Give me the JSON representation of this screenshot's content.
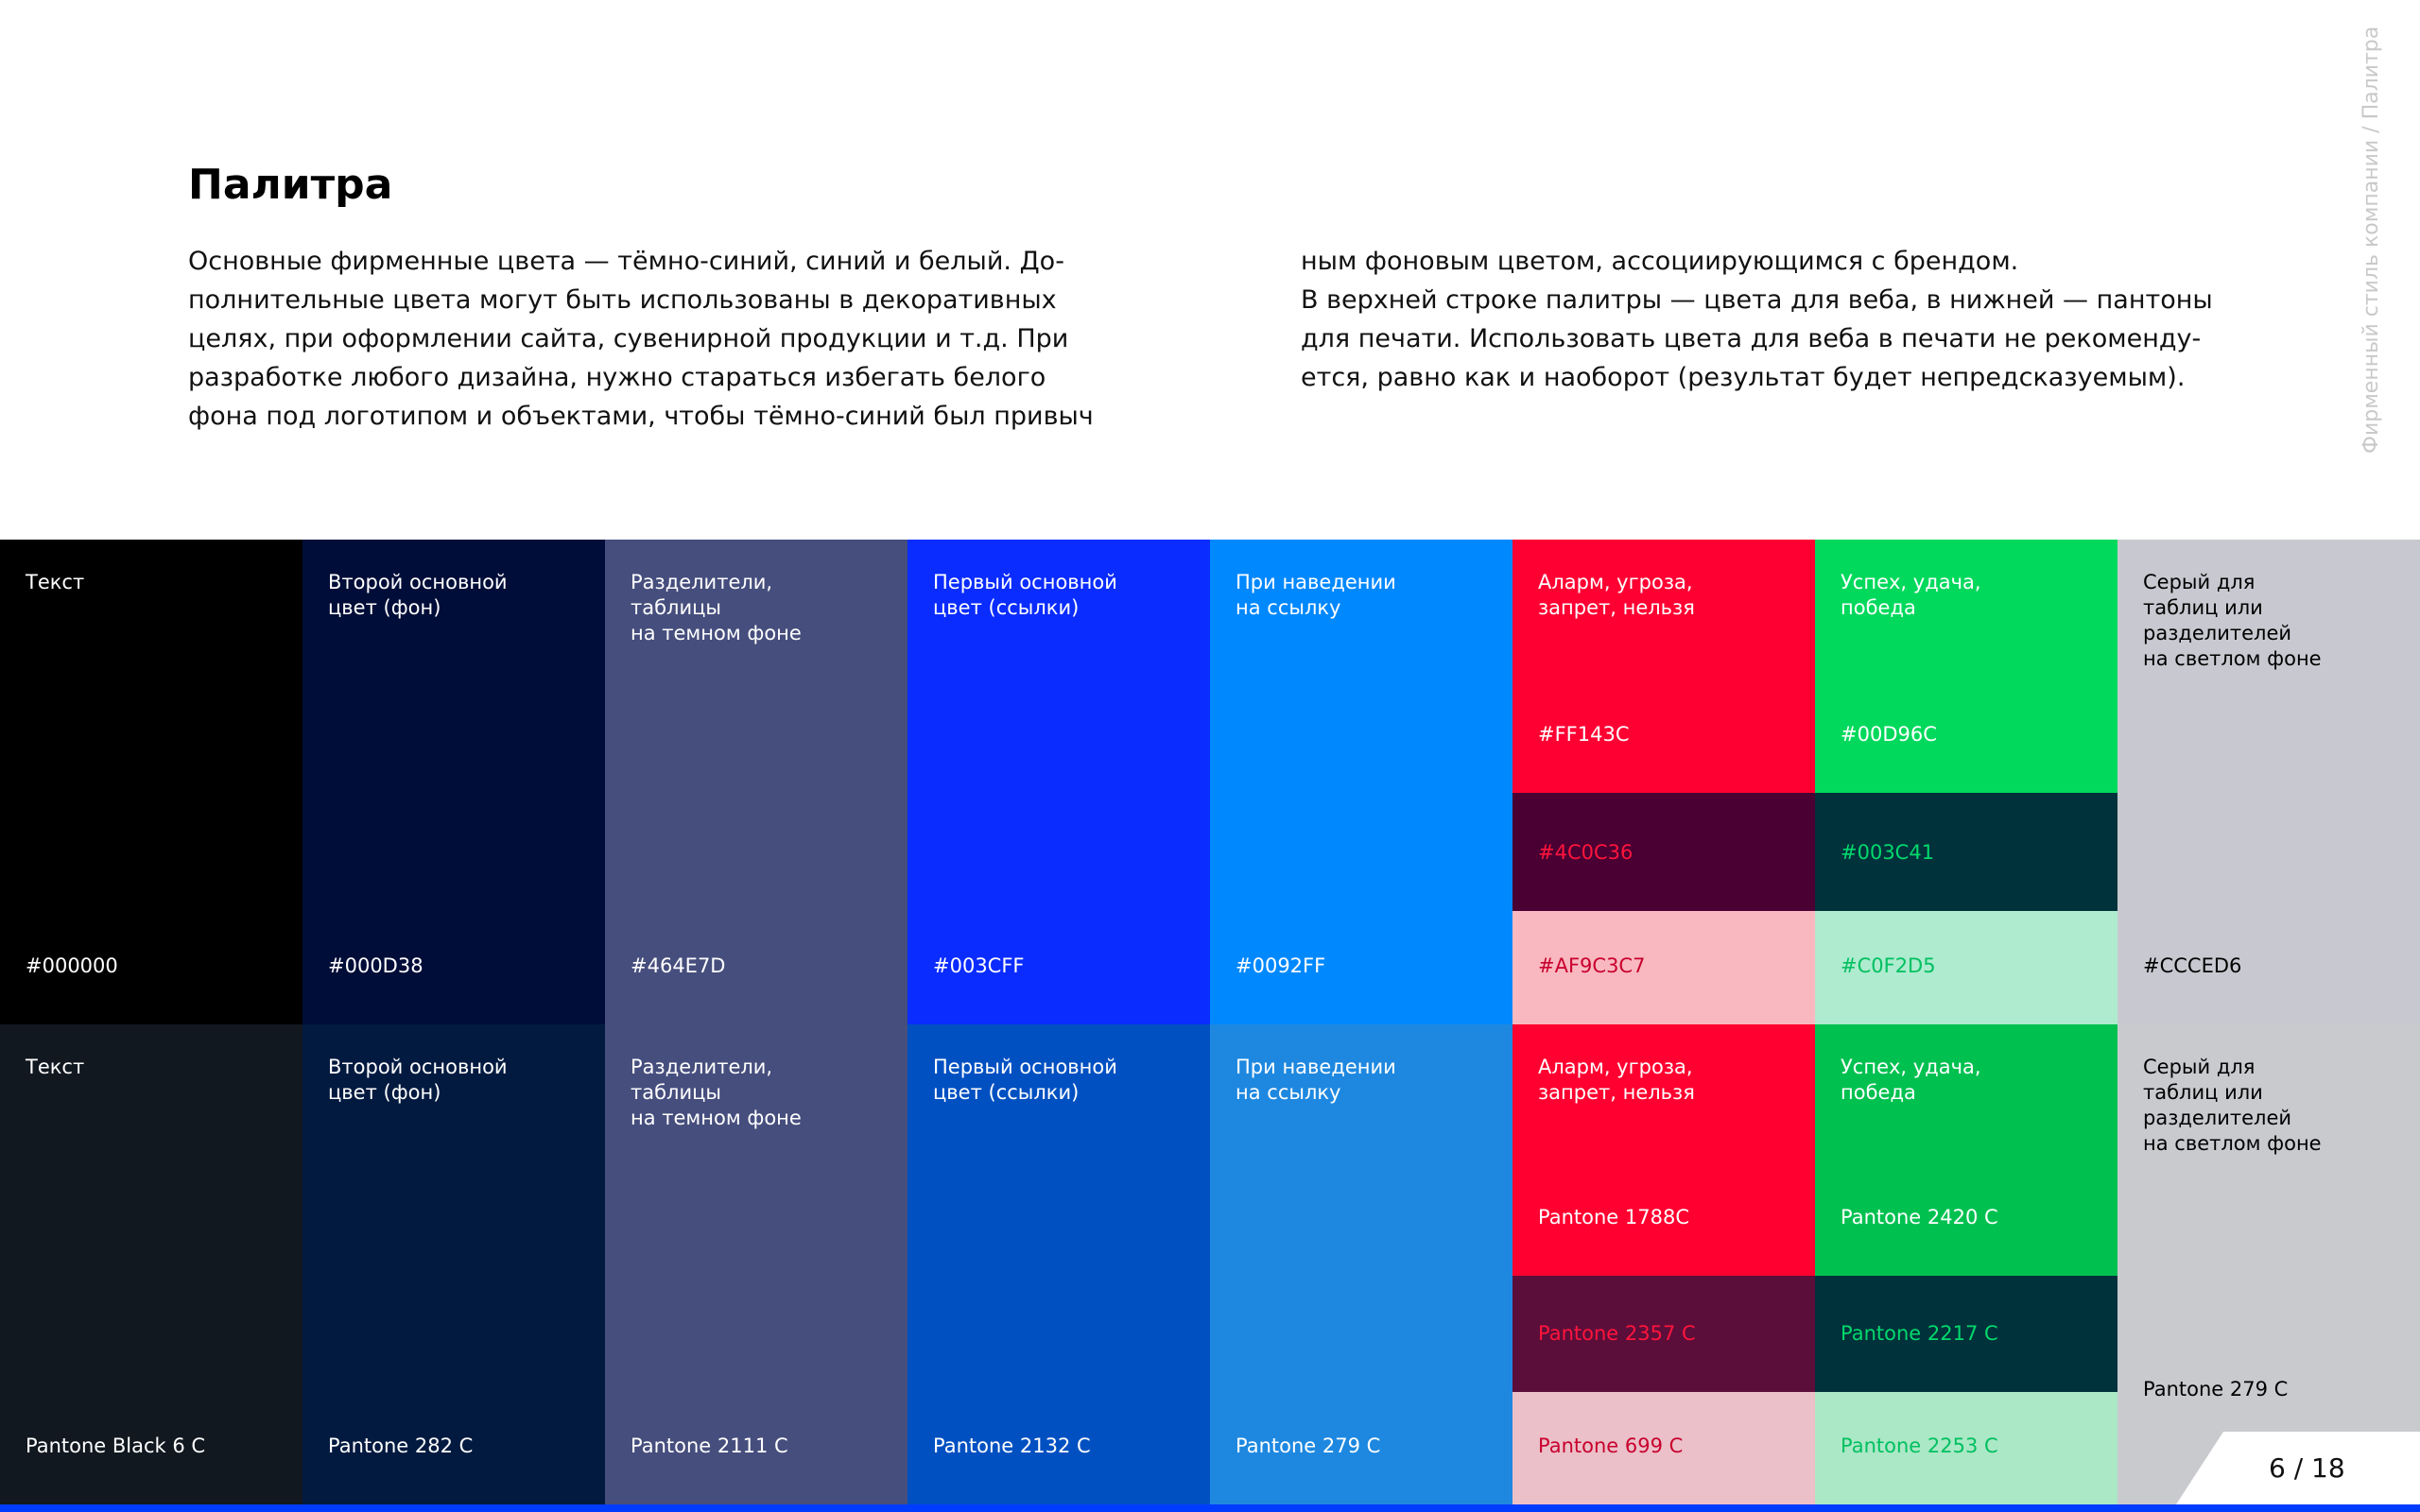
{
  "header": {
    "title": "Палитра",
    "paragraph_left": [
      "Основные фирменные цвета — тёмно-синий, синий и белый. До-",
      "полнительные цвета могут быть использованы в декоративных",
      "целях, при оформлении сайта, сувенирной продукции и т.д. При",
      "разработке любого дизайна, нужно стараться избегать белого",
      "фона под логотипом и объектами, чтобы тёмно-синий был привыч"
    ],
    "paragraph_right": [
      "ным фоновым цветом, ассоциирующимся с брендом.",
      "В верхней строке палитры — цвета для веба, в нижней — пантоны",
      "для печати. Использовать цвета для веба в печати не рекоменду-",
      "ется, равно как и наоборот (результат будет непредсказуемым)."
    ],
    "side_label": "Фирменный стиль компании / Палитра"
  },
  "palette": {
    "web": [
      {
        "label": "Текст",
        "swatches": [
          {
            "code": "#000000",
            "color": "#000000",
            "text_color": "#ffffff"
          }
        ]
      },
      {
        "label": "Второй основной\nцвет (фон)",
        "swatches": [
          {
            "code": "#000D38",
            "color": "#000d38",
            "text_color": "#ffffff"
          }
        ]
      },
      {
        "label": "Разделители,\nтаблицы\nна темном фоне",
        "swatches": [
          {
            "code": "#464E7D",
            "color": "#464e7d",
            "text_color": "#ffffff"
          }
        ]
      },
      {
        "label": "Первый основной\nцвет (ссылки)",
        "swatches": [
          {
            "code": "#003CFF",
            "color": "#0a2cff",
            "text_color": "#ffffff"
          }
        ]
      },
      {
        "label": "При наведении\nна ссылку",
        "swatches": [
          {
            "code": "#0092FF",
            "color": "#0088ff",
            "text_color": "#ffffff"
          }
        ]
      },
      {
        "label": "Аларм, угроза,\nзапрет, нельзя",
        "swatches": [
          {
            "code": "#FF143C",
            "color": "#ff0033",
            "text_color": "#ffffff"
          },
          {
            "code": "#4C0C36",
            "color": "#4a0033",
            "text_color": "#ff143c"
          },
          {
            "code": "#AF9C3C7",
            "color": "#f9b8c0",
            "text_color": "#c8002e"
          }
        ]
      },
      {
        "label": "Успех, удача,\nпобеда",
        "swatches": [
          {
            "code": "#00D96C",
            "color": "#00d95c",
            "text_color": "#ffffff"
          },
          {
            "code": "#003C41",
            "color": "#00323c",
            "text_color": "#00d96c"
          },
          {
            "code": "#C0F2D5",
            "color": "#aeebcf",
            "text_color": "#00c060"
          }
        ]
      },
      {
        "label": "Серый для\nтаблиц или\nразделителей\nна светлом фоне",
        "swatches": [
          {
            "code": "#CCCED6",
            "color": "#c8c9d0",
            "text_color": "#000000"
          }
        ]
      }
    ],
    "print": [
      {
        "label": "Текст",
        "swatches": [
          {
            "code": "Pantone Black 6 C",
            "color": "#111820",
            "text_color": "#ffffff"
          }
        ]
      },
      {
        "label": "Второй основной\nцвет (фон)",
        "swatches": [
          {
            "code": "Pantone 282 C",
            "color": "#031a40",
            "text_color": "#ffffff"
          }
        ]
      },
      {
        "label": "Разделители,\nтаблицы\nна темном фоне",
        "swatches": [
          {
            "code": "Pantone 2111 C",
            "color": "#464e7d",
            "text_color": "#ffffff"
          }
        ]
      },
      {
        "label": "Первый основной\nцвет (ссылки)",
        "swatches": [
          {
            "code": "Pantone 2132 C",
            "color": "#0050c2",
            "text_color": "#ffffff"
          }
        ]
      },
      {
        "label": "При наведении\nна ссылку",
        "swatches": [
          {
            "code": "Pantone 279 C",
            "color": "#1e88e0",
            "text_color": "#ffffff"
          }
        ]
      },
      {
        "label": "Аларм, угроза,\nзапрет, нельзя",
        "swatches": [
          {
            "code": "Pantone 1788C",
            "color": "#ff0030",
            "text_color": "#ffffff"
          },
          {
            "code": "Pantone 2357 C",
            "color": "#5c0e3a",
            "text_color": "#ff143c"
          },
          {
            "code": "Pantone 699 C",
            "color": "#ebc0c8",
            "text_color": "#c8002e"
          }
        ]
      },
      {
        "label": "Успех, удача,\nпобеда",
        "swatches": [
          {
            "code": "Pantone 2420 C",
            "color": "#00c150",
            "text_color": "#ffffff"
          },
          {
            "code": "Pantone 2217 C",
            "color": "#00323b",
            "text_color": "#00d96c"
          },
          {
            "code": "Pantone 2253 C",
            "color": "#abe8c6",
            "text_color": "#00c060"
          }
        ]
      },
      {
        "label": "Серый для\nтаблиц или\nразделителей\nна светлом фоне",
        "swatches": [
          {
            "code": "Pantone 279 C",
            "color": "#c9cace",
            "text_color": "#000000"
          }
        ]
      }
    ]
  },
  "page_indicator": "6 / 18"
}
